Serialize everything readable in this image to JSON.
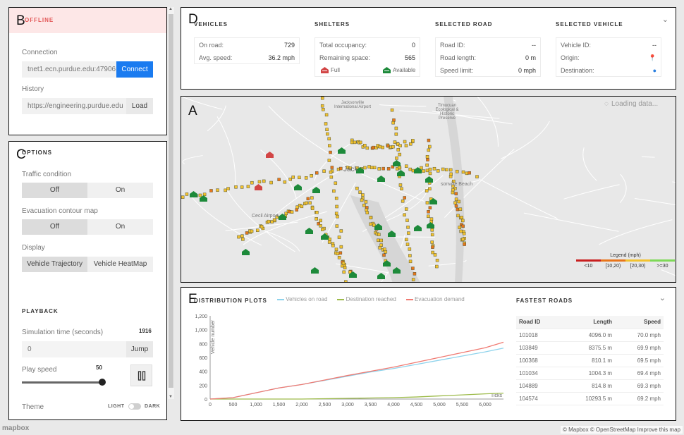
{
  "connection": {
    "status": "OFFLINE",
    "section_label": "Connection",
    "host": "tnet1.ecn.purdue.edu:47906",
    "connect_label": "Connect",
    "history_label": "History",
    "history_url": "https://engineering.purdue.edu",
    "load_label": "Load"
  },
  "options": {
    "title": "OPTIONS",
    "traffic_label": "Traffic condition",
    "contour_label": "Evacuation contour map",
    "display_label": "Display",
    "off": "Off",
    "on": "On",
    "display_trajectory": "Vehicle Trajectory",
    "display_heatmap": "Vehicle HeatMap"
  },
  "playback": {
    "title": "PLAYBACK",
    "sim_time_label": "Simulation time (seconds)",
    "sim_time_value": "1916",
    "jump_input": "0",
    "jump_label": "Jump",
    "speed_label": "Play speed",
    "speed_value": "50",
    "speed_fraction": 0.97,
    "theme_label": "Theme",
    "light": "LIGHT",
    "dark": "DARK"
  },
  "letters": {
    "b": "B",
    "c": "C",
    "d": "D",
    "a": "A",
    "e": "E"
  },
  "vehicles": {
    "title": "VEHICLES",
    "on_road_label": "On road:",
    "on_road": "729",
    "avg_speed_label": "Avg. speed:",
    "avg_speed": "36.2 mph"
  },
  "shelters": {
    "title": "SHELTERS",
    "occupancy_label": "Total occupancy:",
    "occupancy": "0",
    "remaining_label": "Remaining space:",
    "remaining": "565",
    "full": "Full",
    "available": "Available"
  },
  "selected_road": {
    "title": "SELECTED ROAD",
    "id_label": "Road ID:",
    "id": "--",
    "length_label": "Road length:",
    "length": "0 m",
    "limit_label": "Speed limit:",
    "limit": "0 mph"
  },
  "selected_vehicle": {
    "title": "SELECTED VEHICLE",
    "id_label": "Vehicle ID:",
    "id": "--",
    "origin_label": "Origin:",
    "destination_label": "Destination:"
  },
  "map": {
    "loading": "Loading data...",
    "labels": [
      "Jacksonville International Airport",
      "Timucuan Ecological & Historic Preserve",
      "Jack",
      "sonville Beach",
      "Cecil Field",
      "Cecil Airport"
    ],
    "legend_title": "Legend (mph)",
    "legend_ticks": [
      "<10",
      "[10,20)",
      "[20,30)",
      ">=30"
    ],
    "legend_colors": [
      "#c81e1e",
      "#e8751a",
      "#f2c22e",
      "#7ed957"
    ]
  },
  "distribution": {
    "title": "DISTRIBUTION PLOTS",
    "legend": [
      "Vehicles on road",
      "Destination reached",
      "Evacuation demand"
    ],
    "ylabel": "Vehicle number",
    "xlabel": "Ticks"
  },
  "chart_data": {
    "type": "line",
    "title": "DISTRIBUTION PLOTS",
    "xlabel": "Ticks",
    "ylabel": "Vehicle number",
    "xlim": [
      0,
      6400
    ],
    "ylim": [
      0,
      1200
    ],
    "x_ticks": [
      "0",
      "500",
      "1,000",
      "1,500",
      "2,000",
      "2,500",
      "3,000",
      "3,500",
      "4,000",
      "4,500",
      "5,000",
      "5,500",
      "6,000"
    ],
    "y_ticks": [
      "0",
      "200",
      "400",
      "600",
      "800",
      "1,000",
      "1,200"
    ],
    "x": [
      0,
      500,
      1000,
      1500,
      2000,
      2500,
      3000,
      3500,
      4000,
      4500,
      5000,
      5500,
      6000,
      6400
    ],
    "series": [
      {
        "name": "Vehicles on road",
        "color": "#8fd3ec",
        "values": [
          0,
          20,
          90,
          160,
          210,
          270,
          330,
          390,
          440,
          500,
          560,
          620,
          680,
          735
        ]
      },
      {
        "name": "Destination reached",
        "color": "#9dbb4a",
        "values": [
          0,
          0,
          0,
          0,
          0,
          5,
          10,
          15,
          20,
          30,
          45,
          60,
          75,
          85
        ]
      },
      {
        "name": "Evacuation demand",
        "color": "#f07a72",
        "values": [
          0,
          20,
          90,
          160,
          210,
          275,
          340,
          400,
          460,
          530,
          600,
          670,
          740,
          820
        ]
      }
    ]
  },
  "fastest": {
    "title": "FASTEST ROADS",
    "headers": [
      "Road ID",
      "Length",
      "Speed"
    ],
    "rows": [
      [
        "101018",
        "4096.0 m",
        "70.0 mph"
      ],
      [
        "103849",
        "8375.5 m",
        "69.9 mph"
      ],
      [
        "100368",
        "810.1 m",
        "69.5 mph"
      ],
      [
        "101034",
        "1004.3 m",
        "69.4 mph"
      ],
      [
        "104889",
        "814.8 m",
        "69.3 mph"
      ],
      [
        "104574",
        "10293.5 m",
        "69.2 mph"
      ]
    ]
  },
  "attribution": "© Mapbox © OpenStreetMap Improve this map",
  "mapbox_logo": "mapbox"
}
